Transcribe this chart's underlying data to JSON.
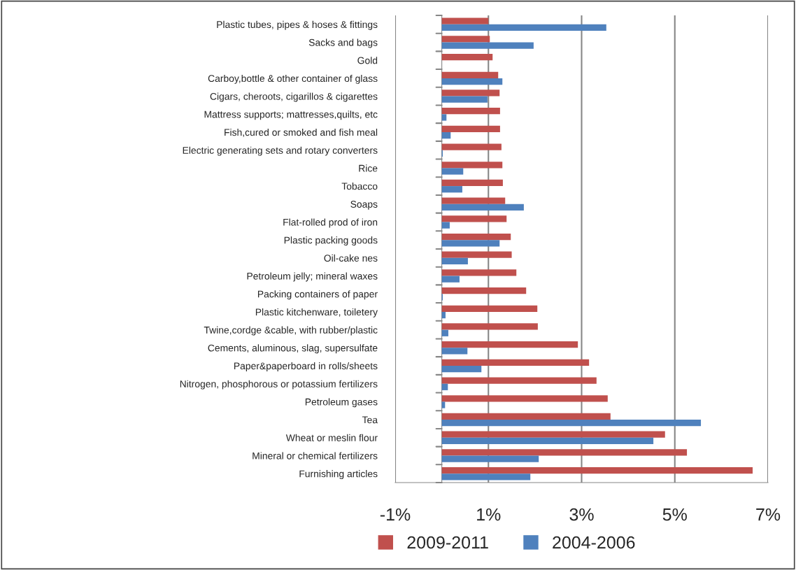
{
  "chart_data": {
    "type": "bar",
    "orientation": "horizontal",
    "categories": [
      "Plastic tubes, pipes & hoses & fittings",
      "Sacks and bags",
      "Gold",
      "Carboy,bottle & other container of glass",
      "Cigars, cheroots, cigarillos & cigarettes",
      "Mattress supports; mattresses,quilts, etc",
      "Fish,cured or smoked and fish meal",
      "Electric generating sets and rotary converters",
      "Rice",
      "Tobacco",
      "Soaps",
      "Flat-rolled prod of iron",
      "Plastic packing goods",
      "Oil-cake nes",
      "Petroleum jelly; mineral waxes",
      "Packing containers of paper",
      "Plastic kitchenware, toiletery",
      "Twine,cordge &cable, with rubber/plastic",
      "Cements, aluminous, slag, supersulfate",
      "Paper&paperboard in rolls/sheets",
      "Nitrogen, phosphorous or potassium fertilizers",
      "Petroleum gases",
      "Tea",
      "Wheat or meslin flour",
      "Mineral or chemical fertilizers",
      "Furnishing articles"
    ],
    "series": [
      {
        "name": "2009-2011",
        "color": "#c0504d",
        "values": [
          1.0,
          1.03,
          1.09,
          1.21,
          1.24,
          1.25,
          1.25,
          1.28,
          1.3,
          1.31,
          1.36,
          1.39,
          1.48,
          1.5,
          1.6,
          1.81,
          2.05,
          2.06,
          2.92,
          3.16,
          3.32,
          3.56,
          3.62,
          4.79,
          5.26,
          6.67
        ]
      },
      {
        "name": "2004-2006",
        "color": "#4f81bd",
        "values": [
          3.53,
          1.97,
          null,
          1.3,
          0.98,
          0.1,
          0.19,
          0.02,
          0.46,
          0.44,
          1.76,
          0.17,
          1.24,
          0.56,
          0.38,
          0.02,
          0.08,
          0.14,
          0.55,
          0.85,
          0.13,
          0.07,
          5.56,
          4.54,
          2.08,
          1.9
        ]
      }
    ],
    "xlim": [
      -1,
      7
    ],
    "xticks": [
      {
        "value": -1,
        "label": "-1%"
      },
      {
        "value": 1,
        "label": "1%"
      },
      {
        "value": 3,
        "label": "3%"
      },
      {
        "value": 5,
        "label": "5%"
      },
      {
        "value": 7,
        "label": "7%"
      }
    ],
    "grid": "x",
    "legend": "bottom"
  }
}
